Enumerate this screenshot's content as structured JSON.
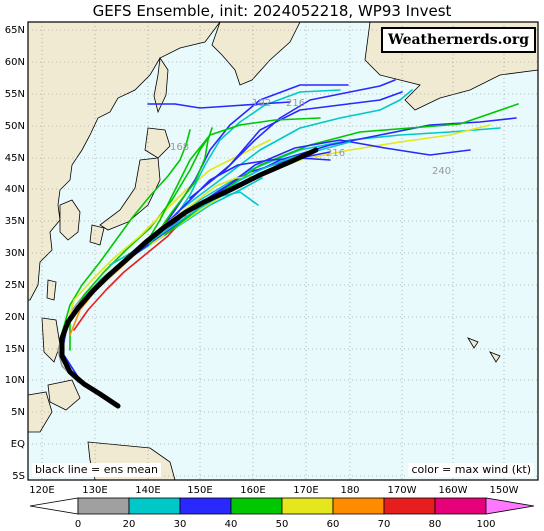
{
  "title": "GEFS Ensemble, init: 2024052218, WP93 Invest",
  "watermark": "Weathernerds.org",
  "legend_left": "black line = ens mean",
  "legend_right": "color = max wind (kt)",
  "lat_labels": [
    "65N",
    "60N",
    "55N",
    "50N",
    "45N",
    "40N",
    "35N",
    "30N",
    "25N",
    "20N",
    "15N",
    "10N",
    "5N",
    "EQ",
    "5S"
  ],
  "lon_labels": [
    "120E",
    "130E",
    "140E",
    "150E",
    "160E",
    "170E",
    "180",
    "170W",
    "160W",
    "150W"
  ],
  "hour_labels": [
    "216",
    "216",
    "240",
    "192",
    "168"
  ],
  "colorbar": {
    "ticks": [
      "0",
      "10",
      "20",
      "30",
      "40",
      "50",
      "60",
      "70",
      "80",
      "90",
      "100"
    ],
    "colors": [
      "#a0a0a0",
      "#00c8c8",
      "#2828ff",
      "#00c800",
      "#e6e61e",
      "#ff8c00",
      "#e61e1e",
      "#e6007a",
      "#ff78ff"
    ]
  },
  "colors": {
    "ocean": "#e8fafc",
    "land": "#f0ead2",
    "coast": "#000000",
    "grid": "#888888"
  }
}
